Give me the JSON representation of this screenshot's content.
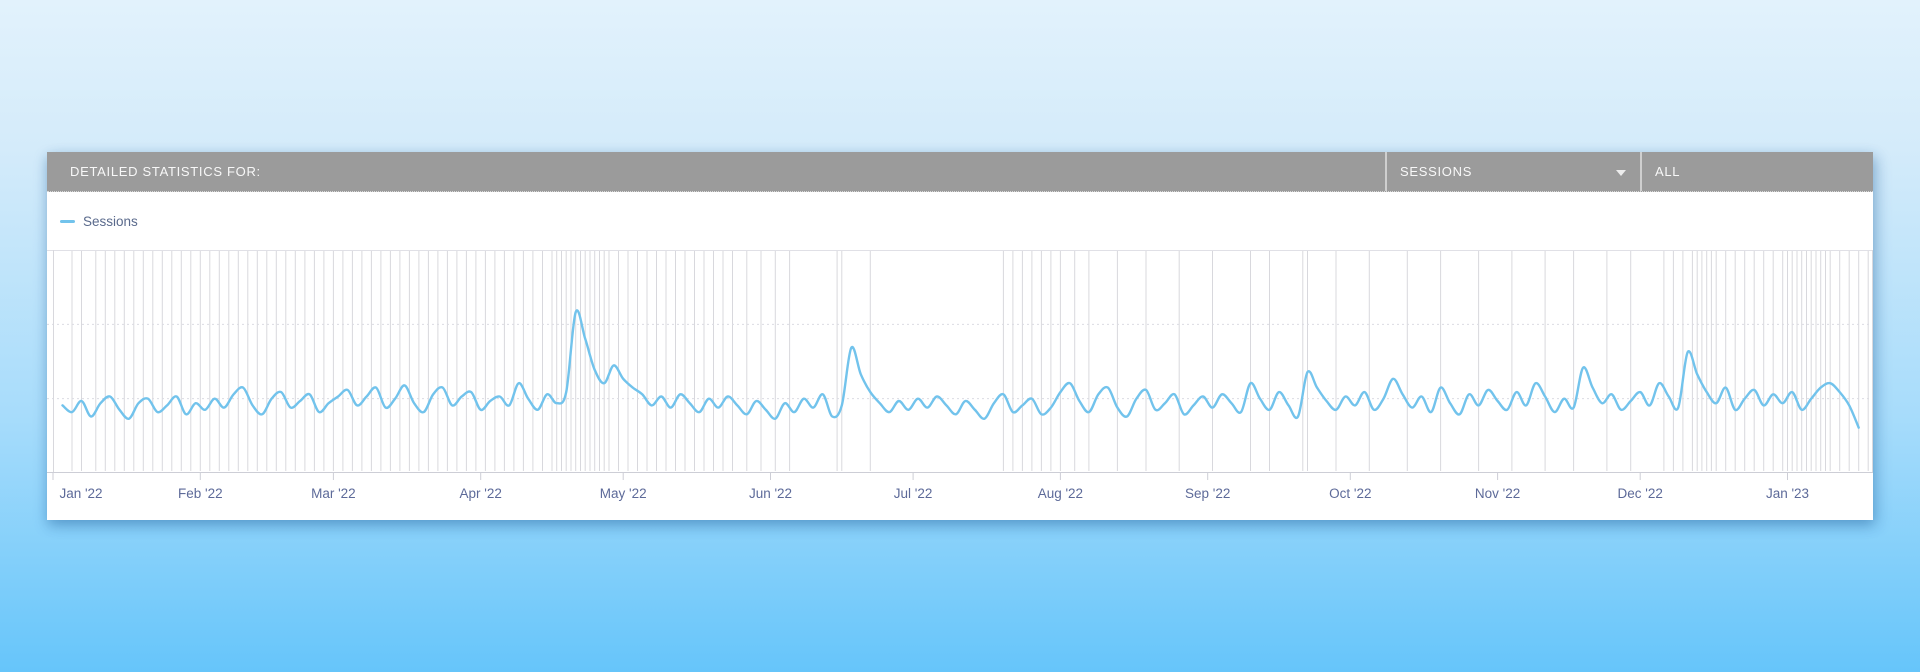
{
  "header": {
    "title": "DETAILED STATISTICS FOR:",
    "metric_dropdown": {
      "value": "SESSIONS"
    },
    "range_dropdown": {
      "value": "ALL"
    }
  },
  "legend": {
    "items": [
      {
        "label": "Sessions",
        "color": "#72c3ec"
      }
    ]
  },
  "colors": {
    "background_top": "#e2f2fc",
    "background_bottom": "#66c5fa",
    "panel": "#ffffff",
    "header_bar": "#9b9b9b",
    "header_text": "#f8f8f8",
    "divider": "#cfcfcf",
    "series_line": "#72c3ec",
    "event_gridline": "#d8d8dd",
    "horizontal_gridline": "#dcdce2",
    "plot_border": "#e0e0e6",
    "axis_line": "#cdced6",
    "axis_label": "#5d6a99",
    "legend_text": "#5a6a8c"
  },
  "chart_data": {
    "type": "line",
    "title": "",
    "xlabel": "",
    "ylabel": "",
    "x_unit": "days since 2022-01-01",
    "x_range_days": [
      0,
      383
    ],
    "ylim": [
      0,
      100
    ],
    "legend_position": "top-left",
    "grid": {
      "horizontal_gridline_values": [
        66.7,
        33.3
      ],
      "vertical_event_days": [
        4,
        6,
        9,
        11,
        13,
        15,
        17,
        19,
        21,
        23,
        25,
        27,
        29,
        31,
        33,
        35,
        37,
        39,
        41,
        43,
        45,
        47,
        49,
        51,
        53,
        55,
        57,
        59,
        61,
        63,
        65,
        67,
        69,
        71,
        73,
        75,
        77,
        79,
        81,
        83,
        85,
        87,
        89,
        91,
        93,
        95,
        97,
        99,
        101,
        103,
        105,
        106,
        107,
        108,
        109,
        110,
        111,
        112,
        113,
        114,
        115,
        116,
        117,
        119,
        121,
        123,
        125,
        127,
        129,
        131,
        133,
        135,
        137,
        139,
        141,
        143,
        146,
        149,
        152,
        155,
        165,
        166,
        172,
        200,
        202,
        204,
        206,
        208,
        210,
        212,
        215,
        218,
        224,
        230,
        237,
        244,
        252,
        256,
        263,
        264,
        270,
        277,
        285,
        292,
        300,
        307,
        314,
        320,
        327,
        332,
        339,
        341,
        343,
        345,
        346,
        347,
        348,
        349,
        350,
        352,
        354,
        356,
        358,
        360,
        362,
        364,
        365,
        366,
        367,
        368,
        369,
        370,
        371,
        372,
        373,
        374,
        376,
        378,
        380,
        382
      ]
    },
    "x_ticks": [
      {
        "label": "Jan '22",
        "day": 0
      },
      {
        "label": "Feb '22",
        "day": 31
      },
      {
        "label": "Mar '22",
        "day": 59
      },
      {
        "label": "Apr '22",
        "day": 90
      },
      {
        "label": "May '22",
        "day": 120
      },
      {
        "label": "Jun '22",
        "day": 151
      },
      {
        "label": "Jul '22",
        "day": 181
      },
      {
        "label": "Aug '22",
        "day": 212
      },
      {
        "label": "Sep '22",
        "day": 243
      },
      {
        "label": "Oct '22",
        "day": 273
      },
      {
        "label": "Nov '22",
        "day": 304
      },
      {
        "label": "Dec '22",
        "day": 334
      },
      {
        "label": "Jan '23",
        "day": 365
      }
    ],
    "series": [
      {
        "name": "Sessions",
        "color": "#72c3ec",
        "start_day": 2,
        "step_days": 2,
        "values": [
          30,
          27,
          32,
          25,
          31,
          34,
          28,
          24,
          31,
          33,
          27,
          30,
          34,
          26,
          31,
          28,
          33,
          29,
          35,
          38,
          30,
          26,
          33,
          36,
          29,
          32,
          35,
          27,
          31,
          34,
          37,
          30,
          34,
          38,
          29,
          33,
          39,
          31,
          27,
          35,
          38,
          30,
          34,
          36,
          28,
          32,
          34,
          30,
          40,
          33,
          28,
          35,
          31,
          36,
          72,
          60,
          46,
          40,
          48,
          42,
          38,
          35,
          30,
          34,
          29,
          35,
          31,
          27,
          33,
          29,
          34,
          30,
          26,
          32,
          28,
          24,
          31,
          27,
          33,
          29,
          35,
          25,
          30,
          56,
          44,
          36,
          31,
          27,
          32,
          28,
          33,
          29,
          34,
          30,
          26,
          32,
          28,
          24,
          31,
          35,
          27,
          30,
          33,
          26,
          29,
          36,
          40,
          32,
          27,
          35,
          38,
          29,
          25,
          33,
          37,
          28,
          31,
          35,
          26,
          30,
          34,
          29,
          35,
          31,
          27,
          40,
          33,
          28,
          36,
          30,
          25,
          45,
          38,
          32,
          28,
          34,
          30,
          36,
          28,
          33,
          42,
          35,
          29,
          34,
          27,
          38,
          31,
          26,
          35,
          30,
          37,
          32,
          28,
          36,
          30,
          40,
          34,
          27,
          33,
          29,
          47,
          38,
          31,
          35,
          28,
          32,
          36,
          30,
          40,
          34,
          29,
          54,
          44,
          36,
          31,
          38,
          28,
          33,
          37,
          30,
          35,
          31,
          36,
          28,
          33,
          38,
          40,
          36,
          30,
          20
        ]
      }
    ]
  }
}
